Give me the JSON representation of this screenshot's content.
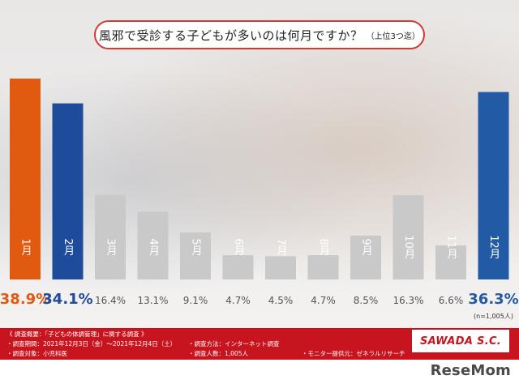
{
  "title": "風邪で受診する子どもが多いのは何月ですか？",
  "title_note": "（上位3つ迄）",
  "colors": {
    "rank1": "#e05a10",
    "rank2": "#1e4b9c",
    "rank3": "#235aa6",
    "others": "#c9c9c9",
    "footer": "#c8141e"
  },
  "chart_data": {
    "type": "bar",
    "title": "風邪で受診する子どもが多いのは何月ですか？（上位3つ迄）",
    "categories": [
      "1月",
      "2月",
      "3月",
      "4月",
      "5月",
      "6月",
      "7月",
      "8月",
      "9月",
      "10月",
      "11月",
      "12月"
    ],
    "values": [
      38.9,
      34.1,
      16.4,
      13.1,
      9.1,
      4.7,
      4.5,
      4.7,
      8.5,
      16.3,
      6.6,
      36.3
    ],
    "value_labels": [
      "38.9%",
      "34.1%",
      "16.4%",
      "13.1%",
      "9.1%",
      "4.7%",
      "4.5%",
      "4.7%",
      "8.5%",
      "16.3%",
      "6.6%",
      "36.3%"
    ],
    "bar_colors": [
      "#e05a10",
      "#1e4b9c",
      "#c9c9c9",
      "#c9c9c9",
      "#c9c9c9",
      "#c9c9c9",
      "#c9c9c9",
      "#c9c9c9",
      "#c9c9c9",
      "#c9c9c9",
      "#c9c9c9",
      "#235aa6"
    ],
    "ylim": [
      0,
      40
    ],
    "sample_note": "(n=1,005人)",
    "grid": false
  },
  "footer": {
    "heading": "《 調査概要：「子どもの体調管理」に関する調査 》",
    "period": "・調査期間：2021年12月3日（金）～2021年12月4日（土）",
    "target": "・調査対象：小児科医",
    "method": "・調査方法：インターネット調査",
    "count": "・調査人数：1,005人",
    "provider": "・モニター提供元：ゼネラルリサーチ",
    "logo": "SAWADA S.C."
  },
  "brand": "ReseMom"
}
